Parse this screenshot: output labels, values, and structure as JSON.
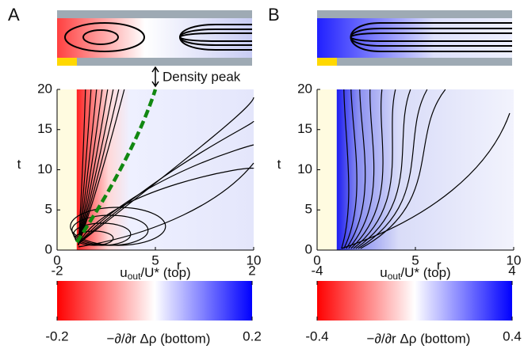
{
  "panels": [
    {
      "label": "A",
      "annotation": "Density peak",
      "x_label": "r",
      "y_label": "t",
      "xlim": [
        0,
        10
      ],
      "ylim": [
        0,
        20
      ],
      "xticks": [
        0,
        5,
        10
      ],
      "yticks": [
        0,
        5,
        10,
        15,
        20
      ],
      "colorbar": {
        "top_label": {
          "main": "u",
          "sub": "out",
          "rest": "/U* (top)"
        },
        "bottom_label": "−∂/∂r Δρ (bottom)",
        "top_ticks": [
          -2,
          2
        ],
        "bottom_ticks": [
          -0.2,
          0.2
        ]
      }
    },
    {
      "label": "B",
      "x_label": "r",
      "y_label": "t",
      "xlim": [
        0,
        10
      ],
      "ylim": [
        0,
        20
      ],
      "xticks": [
        0,
        5,
        10
      ],
      "yticks": [
        0,
        5,
        10,
        15,
        20
      ],
      "colorbar": {
        "top_label": {
          "main": "u",
          "sub": "out",
          "rest": "/U* (top)"
        },
        "bottom_label": "−∂/∂r Δρ (bottom)",
        "top_ticks": [
          -4,
          4
        ],
        "bottom_ticks": [
          -0.4,
          0.4
        ]
      }
    }
  ]
}
